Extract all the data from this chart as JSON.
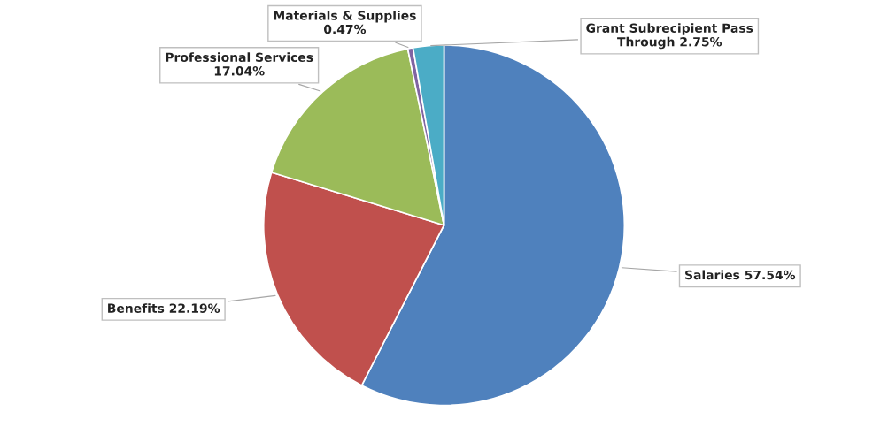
{
  "chart_data": {
    "type": "pie",
    "categories": [
      "Salaries",
      "Benefits",
      "Professional Services",
      "Materials & Supplies",
      "Grant Subrecipient Pass Through"
    ],
    "values": [
      57.54,
      22.19,
      17.04,
      0.47,
      2.75
    ],
    "value_labels": [
      "57.54%",
      "22.19%",
      "17.04%",
      "0.47%",
      "2.75%"
    ],
    "colors": [
      "#4f81bd",
      "#c0504d",
      "#9bbb59",
      "#8064a2",
      "#4bacc6"
    ],
    "legend": false
  }
}
